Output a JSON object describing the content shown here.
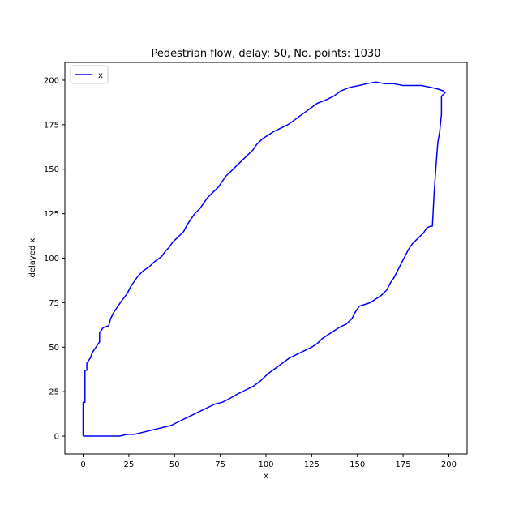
{
  "chart_data": {
    "type": "line",
    "title": "Pedestrian flow, delay: 50, No. points: 1030",
    "xlabel": "x",
    "ylabel": "delayed x",
    "xlim": [
      -10,
      210
    ],
    "ylim": [
      -10,
      210
    ],
    "x_ticks": [
      0,
      25,
      50,
      75,
      100,
      125,
      150,
      175,
      200
    ],
    "y_ticks": [
      0,
      25,
      50,
      75,
      100,
      125,
      150,
      175,
      200
    ],
    "grid": false,
    "legend_position": "top-left",
    "series": [
      {
        "name": "x",
        "color": "#0000ff",
        "points": [
          [
            0,
            0
          ],
          [
            0,
            19
          ],
          [
            1,
            19
          ],
          [
            1,
            37
          ],
          [
            2,
            37
          ],
          [
            2,
            41
          ],
          [
            4,
            44
          ],
          [
            5,
            47
          ],
          [
            7,
            50
          ],
          [
            9,
            53
          ],
          [
            9,
            58
          ],
          [
            11,
            61
          ],
          [
            14,
            62
          ],
          [
            15,
            66
          ],
          [
            17,
            70
          ],
          [
            19,
            73
          ],
          [
            21,
            76
          ],
          [
            24,
            80
          ],
          [
            26,
            84
          ],
          [
            28,
            87
          ],
          [
            30,
            90
          ],
          [
            33,
            93
          ],
          [
            36,
            95
          ],
          [
            39,
            98
          ],
          [
            43,
            101
          ],
          [
            45,
            104
          ],
          [
            47,
            106
          ],
          [
            49,
            109
          ],
          [
            52,
            112
          ],
          [
            55,
            115
          ],
          [
            57,
            119
          ],
          [
            59,
            122
          ],
          [
            61,
            125
          ],
          [
            64,
            128
          ],
          [
            66,
            131
          ],
          [
            68,
            134
          ],
          [
            71,
            137
          ],
          [
            74,
            140
          ],
          [
            76,
            143
          ],
          [
            78,
            146
          ],
          [
            81,
            149
          ],
          [
            84,
            152
          ],
          [
            87,
            155
          ],
          [
            90,
            158
          ],
          [
            93,
            161
          ],
          [
            95,
            164
          ],
          [
            98,
            167
          ],
          [
            101,
            169
          ],
          [
            104,
            171
          ],
          [
            108,
            173
          ],
          [
            112,
            175
          ],
          [
            116,
            178
          ],
          [
            120,
            181
          ],
          [
            124,
            184
          ],
          [
            128,
            187
          ],
          [
            133,
            189
          ],
          [
            137,
            191
          ],
          [
            141,
            194
          ],
          [
            146,
            196
          ],
          [
            151,
            197
          ],
          [
            155,
            198
          ],
          [
            160,
            199
          ],
          [
            165,
            198
          ],
          [
            170,
            198
          ],
          [
            175,
            197
          ],
          [
            180,
            197
          ],
          [
            185,
            197
          ],
          [
            190,
            196
          ],
          [
            194,
            195
          ],
          [
            197,
            194
          ],
          [
            198,
            193
          ],
          [
            197,
            192
          ],
          [
            196,
            191
          ],
          [
            196,
            181
          ],
          [
            195,
            171
          ],
          [
            194,
            165
          ],
          [
            193,
            152
          ],
          [
            192,
            137
          ],
          [
            191,
            118
          ],
          [
            190,
            118
          ],
          [
            188,
            117
          ],
          [
            186,
            114
          ],
          [
            183,
            111
          ],
          [
            180,
            108
          ],
          [
            178,
            105
          ],
          [
            176,
            101
          ],
          [
            174,
            97
          ],
          [
            172,
            93
          ],
          [
            170,
            89
          ],
          [
            168,
            86
          ],
          [
            166,
            82
          ],
          [
            163,
            79
          ],
          [
            160,
            77
          ],
          [
            157,
            75
          ],
          [
            154,
            74
          ],
          [
            151,
            73
          ],
          [
            149,
            70
          ],
          [
            147,
            66
          ],
          [
            144,
            63
          ],
          [
            140,
            61
          ],
          [
            137,
            59
          ],
          [
            134,
            57
          ],
          [
            131,
            55
          ],
          [
            128,
            52
          ],
          [
            125,
            50
          ],
          [
            121,
            48
          ],
          [
            117,
            46
          ],
          [
            113,
            44
          ],
          [
            109,
            41
          ],
          [
            105,
            38
          ],
          [
            101,
            35
          ],
          [
            97,
            31
          ],
          [
            93,
            28
          ],
          [
            89,
            26
          ],
          [
            85,
            24
          ],
          [
            80,
            21
          ],
          [
            76,
            19
          ],
          [
            72,
            18
          ],
          [
            68,
            16
          ],
          [
            64,
            14
          ],
          [
            60,
            12
          ],
          [
            56,
            10
          ],
          [
            52,
            8
          ],
          [
            48,
            6
          ],
          [
            44,
            5
          ],
          [
            40,
            4
          ],
          [
            36,
            3
          ],
          [
            32,
            2
          ],
          [
            28,
            1
          ],
          [
            24,
            1
          ],
          [
            20,
            0
          ],
          [
            10,
            0
          ],
          [
            0,
            0
          ]
        ]
      }
    ]
  }
}
